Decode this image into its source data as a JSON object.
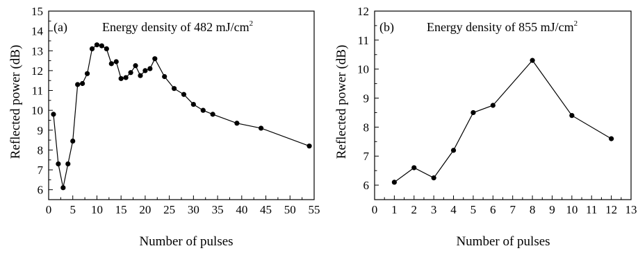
{
  "figure": {
    "panels": [
      {
        "letter": "(a)",
        "annotation_prefix": "Energy density of 482 mJ/cm",
        "annotation_sup": "2",
        "xlabel": "Number of pulses",
        "ylabel": "Reflected power (dB)"
      },
      {
        "letter": "(b)",
        "annotation_prefix": "Energy density of 855 mJ/cm",
        "annotation_sup": "2",
        "xlabel": "Number of pulses",
        "ylabel": "Reflected power (dB)"
      }
    ]
  },
  "chart_data": [
    {
      "type": "line",
      "panel": "(a)",
      "xlabel": "Number of pulses",
      "ylabel": "Reflected power (dB)",
      "xlim": [
        0,
        55
      ],
      "ylim": [
        5.5,
        15
      ],
      "xticks": [
        0,
        5,
        10,
        15,
        20,
        25,
        30,
        35,
        40,
        45,
        50,
        55
      ],
      "yticks": [
        6,
        7,
        8,
        9,
        10,
        11,
        12,
        13,
        14,
        15
      ],
      "markers": "filled-circle",
      "line_color": "#000000",
      "series": [
        {
          "x": [
            1,
            2,
            3,
            4,
            5,
            6,
            7,
            8,
            9,
            10,
            11,
            12,
            13,
            14,
            15,
            16,
            17,
            18,
            19,
            20,
            21,
            22,
            24,
            26,
            28,
            30,
            32,
            34,
            39,
            44,
            54
          ],
          "y": [
            9.8,
            7.3,
            6.1,
            7.3,
            8.45,
            11.3,
            11.35,
            11.85,
            13.1,
            13.3,
            13.25,
            13.1,
            12.35,
            12.45,
            11.6,
            11.65,
            11.9,
            12.25,
            11.75,
            12.0,
            12.1,
            12.6,
            11.7,
            11.1,
            10.8,
            10.3,
            10.0,
            9.8,
            9.35,
            9.1,
            8.2
          ]
        }
      ]
    },
    {
      "type": "line",
      "panel": "(b)",
      "xlabel": "Number of pulses",
      "ylabel": "Reflected power (dB)",
      "xlim": [
        0,
        13
      ],
      "ylim": [
        5.5,
        12
      ],
      "xticks": [
        0,
        1,
        2,
        3,
        4,
        5,
        6,
        7,
        8,
        9,
        10,
        11,
        12,
        13
      ],
      "yticks": [
        6,
        7,
        8,
        9,
        10,
        11,
        12
      ],
      "markers": "filled-circle",
      "line_color": "#000000",
      "series": [
        {
          "x": [
            1,
            2,
            3,
            4,
            5,
            6,
            8,
            10,
            12
          ],
          "y": [
            6.1,
            6.6,
            6.25,
            7.2,
            8.5,
            8.75,
            10.3,
            8.4,
            7.6
          ]
        }
      ]
    }
  ]
}
